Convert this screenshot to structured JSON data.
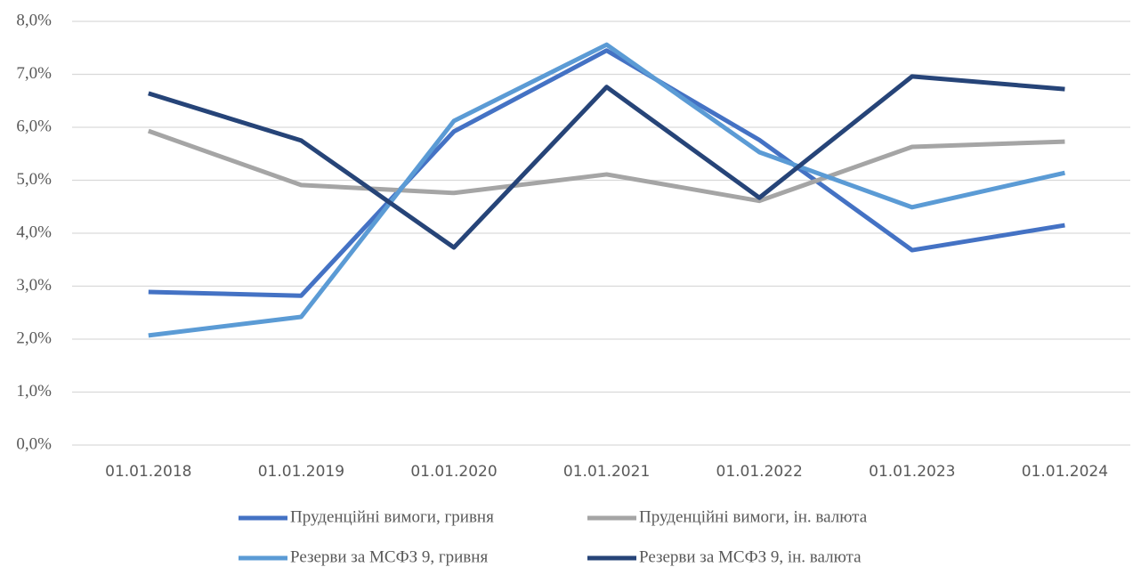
{
  "chart_data": {
    "type": "line",
    "categories": [
      "01.01.2018",
      "01.01.2019",
      "01.01.2020",
      "01.01.2021",
      "01.01.2022",
      "01.01.2023",
      "01.01.2024"
    ],
    "series": [
      {
        "name": "Пруденційні вимоги, гривня",
        "color": "#4472c4",
        "values": [
          2.89,
          2.82,
          5.92,
          7.45,
          5.76,
          3.68,
          4.15
        ]
      },
      {
        "name": "Пруденційні вимоги, ін. валюта",
        "color": "#a5a5a5",
        "values": [
          5.93,
          4.91,
          4.76,
          5.11,
          4.61,
          5.63,
          5.73
        ]
      },
      {
        "name": "Резерви за МСФЗ 9, гривня",
        "color": "#5b9bd5",
        "values": [
          2.07,
          2.42,
          6.12,
          7.56,
          5.53,
          4.49,
          5.14
        ]
      },
      {
        "name": "Резерви за МСФЗ 9, ін. валюта",
        "color": "#264478",
        "values": [
          6.64,
          5.75,
          3.73,
          6.76,
          4.67,
          6.96,
          6.72
        ]
      }
    ],
    "ylim": [
      0,
      8
    ],
    "yticks": [
      {
        "value": 0,
        "label": "0,0%"
      },
      {
        "value": 1,
        "label": "1,0%"
      },
      {
        "value": 2,
        "label": "2,0%"
      },
      {
        "value": 3,
        "label": "3,0%"
      },
      {
        "value": 4,
        "label": "4,0%"
      },
      {
        "value": 5,
        "label": "5,0%"
      },
      {
        "value": 6,
        "label": "6,0%"
      },
      {
        "value": 7,
        "label": "7,0%"
      },
      {
        "value": 8,
        "label": "8,0%"
      }
    ],
    "grid": true
  }
}
